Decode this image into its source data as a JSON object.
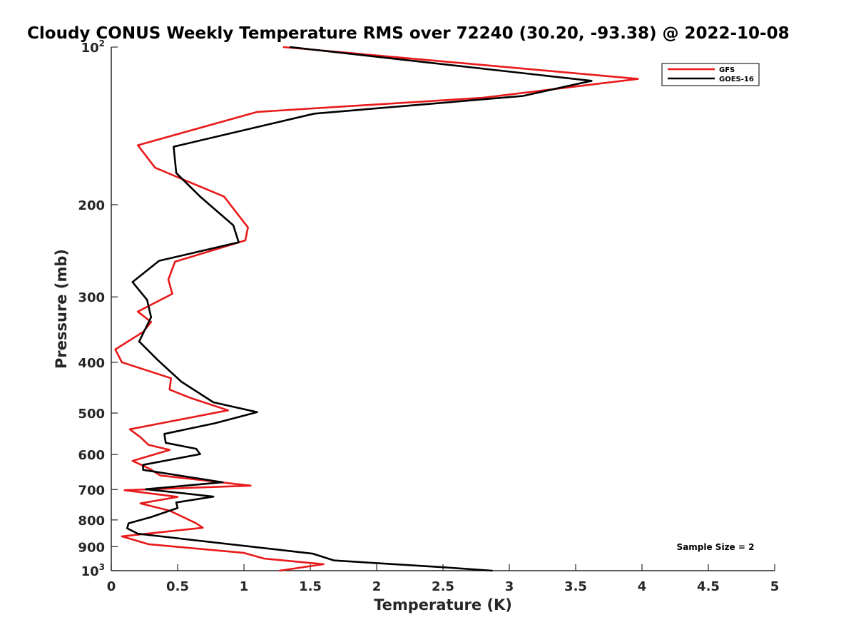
{
  "chart_data": {
    "type": "line",
    "title": "Cloudy CONUS Weekly Temperature RMS over 72240 (30.20, -93.38) @ 2022-10-08",
    "xlabel": "Temperature (K)",
    "ylabel": "Pressure (mb)",
    "xlim": [
      0,
      5
    ],
    "ylim": [
      100,
      1000
    ],
    "y_scale": "log",
    "y_reversed": true,
    "xticks": [
      "0",
      "0.5",
      "1",
      "1.5",
      "2",
      "2.5",
      "3",
      "3.5",
      "4",
      "4.5",
      "5"
    ],
    "yticks": [
      {
        "value": 100,
        "base": "10",
        "exp": "2"
      },
      {
        "value": 200,
        "label": "200"
      },
      {
        "value": 300,
        "label": "300"
      },
      {
        "value": 400,
        "label": "400"
      },
      {
        "value": 500,
        "label": "500"
      },
      {
        "value": 600,
        "label": "600"
      },
      {
        "value": 700,
        "label": "700"
      },
      {
        "value": 800,
        "label": "800"
      },
      {
        "value": 900,
        "label": "900"
      },
      {
        "value": 1000,
        "base": "10",
        "exp": "3"
      }
    ],
    "grid": false,
    "legend_position": "top-right",
    "annotation": "Sample Size = 2",
    "series": [
      {
        "name": "GFS",
        "color": "#e8191a",
        "points": [
          [
            1.3,
            100
          ],
          [
            3.97,
            115
          ],
          [
            2.8,
            125
          ],
          [
            1.1,
            133
          ],
          [
            0.2,
            154
          ],
          [
            0.33,
            170
          ],
          [
            0.85,
            193
          ],
          [
            1.03,
            221
          ],
          [
            1.01,
            234
          ],
          [
            0.48,
            257
          ],
          [
            0.43,
            278
          ],
          [
            0.46,
            296
          ],
          [
            0.2,
            320
          ],
          [
            0.3,
            335
          ],
          [
            0.24,
            350
          ],
          [
            0.03,
            378
          ],
          [
            0.08,
            400
          ],
          [
            0.45,
            429
          ],
          [
            0.44,
            451
          ],
          [
            0.6,
            468
          ],
          [
            0.88,
            494
          ],
          [
            0.14,
            537
          ],
          [
            0.22,
            556
          ],
          [
            0.28,
            575
          ],
          [
            0.44,
            588
          ],
          [
            0.16,
            617
          ],
          [
            0.29,
            639
          ],
          [
            0.37,
            658
          ],
          [
            1.05,
            688
          ],
          [
            0.1,
            702
          ],
          [
            0.5,
            723
          ],
          [
            0.22,
            744
          ],
          [
            0.44,
            768
          ],
          [
            0.64,
            812
          ],
          [
            0.69,
            828
          ],
          [
            0.08,
            860
          ],
          [
            0.28,
            890
          ],
          [
            1.0,
            925
          ],
          [
            1.15,
            948
          ],
          [
            1.6,
            972
          ],
          [
            1.27,
            1000
          ]
        ]
      },
      {
        "name": "GOES-16",
        "color": "#000000",
        "points": [
          [
            1.35,
            100
          ],
          [
            3.62,
            116
          ],
          [
            3.1,
            124
          ],
          [
            1.53,
            134
          ],
          [
            0.47,
            155
          ],
          [
            0.49,
            174
          ],
          [
            0.67,
            193
          ],
          [
            0.92,
            219
          ],
          [
            0.96,
            236
          ],
          [
            0.36,
            256
          ],
          [
            0.16,
            281
          ],
          [
            0.27,
            304
          ],
          [
            0.3,
            328
          ],
          [
            0.21,
            365
          ],
          [
            0.35,
            396
          ],
          [
            0.53,
            436
          ],
          [
            0.77,
            477
          ],
          [
            1.1,
            498
          ],
          [
            0.78,
            523
          ],
          [
            0.4,
            548
          ],
          [
            0.41,
            570
          ],
          [
            0.64,
            585
          ],
          [
            0.67,
            599
          ],
          [
            0.24,
            628
          ],
          [
            0.24,
            642
          ],
          [
            0.84,
            678
          ],
          [
            0.26,
            699
          ],
          [
            0.77,
            722
          ],
          [
            0.49,
            741
          ],
          [
            0.5,
            759
          ],
          [
            0.3,
            790
          ],
          [
            0.13,
            812
          ],
          [
            0.12,
            830
          ],
          [
            0.2,
            850
          ],
          [
            1.52,
            928
          ],
          [
            1.68,
            956
          ],
          [
            2.5,
            985
          ],
          [
            2.87,
            1000
          ]
        ]
      }
    ]
  }
}
